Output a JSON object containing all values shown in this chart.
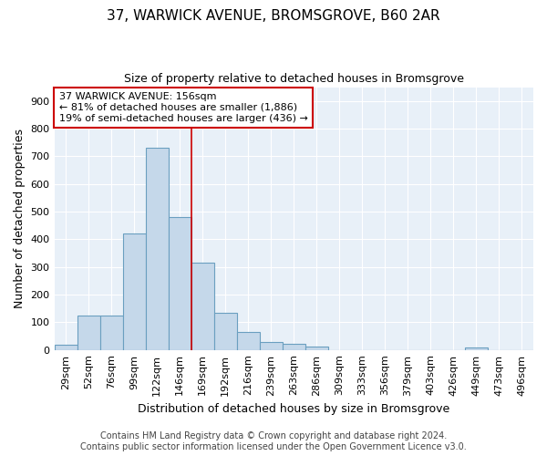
{
  "title": "37, WARWICK AVENUE, BROMSGROVE, B60 2AR",
  "subtitle": "Size of property relative to detached houses in Bromsgrove",
  "xlabel": "Distribution of detached houses by size in Bromsgrove",
  "ylabel": "Number of detached properties",
  "categories": [
    "29sqm",
    "52sqm",
    "76sqm",
    "99sqm",
    "122sqm",
    "146sqm",
    "169sqm",
    "192sqm",
    "216sqm",
    "239sqm",
    "263sqm",
    "286sqm",
    "309sqm",
    "333sqm",
    "356sqm",
    "379sqm",
    "403sqm",
    "426sqm",
    "449sqm",
    "473sqm",
    "496sqm"
  ],
  "values": [
    20,
    125,
    125,
    420,
    730,
    480,
    315,
    135,
    65,
    30,
    22,
    11,
    0,
    0,
    0,
    0,
    0,
    0,
    10,
    0,
    0
  ],
  "bar_color": "#c5d8ea",
  "bar_edge_color": "#6a9fc0",
  "plot_bg_color": "#e8f0f8",
  "fig_bg_color": "#ffffff",
  "annotation_box_color": "#ffffff",
  "annotation_box_edge": "#cc0000",
  "vline_color": "#cc0000",
  "vline_x": 6,
  "annotation_line1": "37 WARWICK AVENUE: 156sqm",
  "annotation_line2": "← 81% of detached houses are smaller (1,886)",
  "annotation_line3": "19% of semi-detached houses are larger (436) →",
  "ylim": [
    0,
    950
  ],
  "yticks": [
    0,
    100,
    200,
    300,
    400,
    500,
    600,
    700,
    800,
    900
  ],
  "title_fontsize": 11,
  "subtitle_fontsize": 9,
  "ylabel_fontsize": 9,
  "xlabel_fontsize": 9,
  "tick_fontsize": 8,
  "ann_fontsize": 8,
  "footer1": "Contains HM Land Registry data © Crown copyright and database right 2024.",
  "footer2": "Contains public sector information licensed under the Open Government Licence v3.0.",
  "footer_fontsize": 7
}
